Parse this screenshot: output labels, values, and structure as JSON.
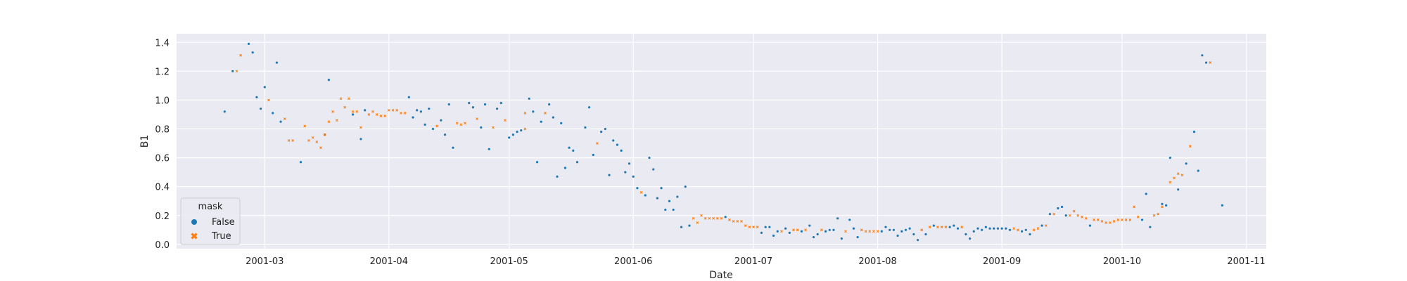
{
  "chart_data": {
    "type": "scatter",
    "xlabel": "Date",
    "ylabel": "B1",
    "xlim": [
      "2001-02-07",
      "2001-11-06"
    ],
    "ylim": [
      -0.03,
      1.46
    ],
    "x_ticks": [
      "2001-03",
      "2001-04",
      "2001-05",
      "2001-06",
      "2001-07",
      "2001-08",
      "2001-09",
      "2001-10",
      "2001-11"
    ],
    "y_ticks": [
      "0.0",
      "0.2",
      "0.4",
      "0.6",
      "0.8",
      "1.0",
      "1.2",
      "1.4"
    ],
    "grid": true,
    "legend": {
      "title": "mask",
      "position": "lower-left",
      "entries": [
        {
          "label": "False",
          "color": "#1f77b4",
          "marker": "circle"
        },
        {
          "label": "True",
          "color": "#ff7f0e",
          "marker": "x"
        }
      ]
    },
    "series": [
      {
        "name": "False",
        "color": "#1f77b4",
        "points": [
          [
            "2001-02-19",
            0.92
          ],
          [
            "2001-02-21",
            1.2
          ],
          [
            "2001-02-25",
            1.39
          ],
          [
            "2001-02-26",
            1.33
          ],
          [
            "2001-02-27",
            1.02
          ],
          [
            "2001-02-28",
            0.94
          ],
          [
            "2001-03-01",
            1.09
          ],
          [
            "2001-03-03",
            0.91
          ],
          [
            "2001-03-04",
            1.26
          ],
          [
            "2001-03-05",
            0.85
          ],
          [
            "2001-03-10",
            0.57
          ],
          [
            "2001-03-16",
            0.76
          ],
          [
            "2001-03-17",
            1.14
          ],
          [
            "2001-03-23",
            0.9
          ],
          [
            "2001-03-25",
            0.73
          ],
          [
            "2001-03-26",
            0.93
          ],
          [
            "2001-04-06",
            1.02
          ],
          [
            "2001-04-07",
            0.88
          ],
          [
            "2001-04-08",
            0.93
          ],
          [
            "2001-04-09",
            0.92
          ],
          [
            "2001-04-10",
            0.83
          ],
          [
            "2001-04-11",
            0.94
          ],
          [
            "2001-04-12",
            0.8
          ],
          [
            "2001-04-14",
            0.86
          ],
          [
            "2001-04-15",
            0.76
          ],
          [
            "2001-04-16",
            0.97
          ],
          [
            "2001-04-17",
            0.67
          ],
          [
            "2001-04-21",
            0.98
          ],
          [
            "2001-04-22",
            0.95
          ],
          [
            "2001-04-24",
            0.81
          ],
          [
            "2001-04-25",
            0.97
          ],
          [
            "2001-04-26",
            0.66
          ],
          [
            "2001-04-28",
            0.94
          ],
          [
            "2001-04-29",
            0.98
          ],
          [
            "2001-05-01",
            0.74
          ],
          [
            "2001-05-02",
            0.76
          ],
          [
            "2001-05-03",
            0.78
          ],
          [
            "2001-05-04",
            0.79
          ],
          [
            "2001-05-06",
            1.01
          ],
          [
            "2001-05-07",
            0.92
          ],
          [
            "2001-05-08",
            0.57
          ],
          [
            "2001-05-09",
            0.85
          ],
          [
            "2001-05-11",
            0.97
          ],
          [
            "2001-05-12",
            0.88
          ],
          [
            "2001-05-13",
            0.47
          ],
          [
            "2001-05-14",
            0.84
          ],
          [
            "2001-05-15",
            0.53
          ],
          [
            "2001-05-16",
            0.67
          ],
          [
            "2001-05-17",
            0.65
          ],
          [
            "2001-05-18",
            0.57
          ],
          [
            "2001-05-20",
            0.81
          ],
          [
            "2001-05-21",
            0.95
          ],
          [
            "2001-05-22",
            0.62
          ],
          [
            "2001-05-24",
            0.78
          ],
          [
            "2001-05-25",
            0.8
          ],
          [
            "2001-05-26",
            0.48
          ],
          [
            "2001-05-27",
            0.72
          ],
          [
            "2001-05-28",
            0.69
          ],
          [
            "2001-05-29",
            0.65
          ],
          [
            "2001-05-30",
            0.5
          ],
          [
            "2001-05-31",
            0.56
          ],
          [
            "2001-06-01",
            0.47
          ],
          [
            "2001-06-02",
            0.39
          ],
          [
            "2001-06-04",
            0.34
          ],
          [
            "2001-06-05",
            0.6
          ],
          [
            "2001-06-06",
            0.52
          ],
          [
            "2001-06-07",
            0.32
          ],
          [
            "2001-06-08",
            0.39
          ],
          [
            "2001-06-09",
            0.24
          ],
          [
            "2001-06-10",
            0.3
          ],
          [
            "2001-06-11",
            0.24
          ],
          [
            "2001-06-12",
            0.33
          ],
          [
            "2001-06-13",
            0.12
          ],
          [
            "2001-06-14",
            0.4
          ],
          [
            "2001-06-15",
            0.13
          ],
          [
            "2001-06-24",
            0.19
          ],
          [
            "2001-07-03",
            0.08
          ],
          [
            "2001-07-04",
            0.12
          ],
          [
            "2001-07-05",
            0.12
          ],
          [
            "2001-07-06",
            0.06
          ],
          [
            "2001-07-07",
            0.09
          ],
          [
            "2001-07-09",
            0.11
          ],
          [
            "2001-07-10",
            0.08
          ],
          [
            "2001-07-13",
            0.09
          ],
          [
            "2001-07-15",
            0.13
          ],
          [
            "2001-07-16",
            0.05
          ],
          [
            "2001-07-17",
            0.07
          ],
          [
            "2001-07-19",
            0.09
          ],
          [
            "2001-07-20",
            0.1
          ],
          [
            "2001-07-21",
            0.1
          ],
          [
            "2001-07-22",
            0.18
          ],
          [
            "2001-07-23",
            0.04
          ],
          [
            "2001-07-25",
            0.17
          ],
          [
            "2001-07-26",
            0.11
          ],
          [
            "2001-07-27",
            0.05
          ],
          [
            "2001-08-02",
            0.09
          ],
          [
            "2001-08-03",
            0.12
          ],
          [
            "2001-08-04",
            0.1
          ],
          [
            "2001-08-05",
            0.1
          ],
          [
            "2001-08-06",
            0.06
          ],
          [
            "2001-08-07",
            0.09
          ],
          [
            "2001-08-08",
            0.1
          ],
          [
            "2001-08-09",
            0.11
          ],
          [
            "2001-08-10",
            0.07
          ],
          [
            "2001-08-11",
            0.03
          ],
          [
            "2001-08-13",
            0.07
          ],
          [
            "2001-08-15",
            0.13
          ],
          [
            "2001-08-19",
            0.12
          ],
          [
            "2001-08-20",
            0.13
          ],
          [
            "2001-08-21",
            0.11
          ],
          [
            "2001-08-23",
            0.07
          ],
          [
            "2001-08-24",
            0.04
          ],
          [
            "2001-08-25",
            0.09
          ],
          [
            "2001-08-26",
            0.11
          ],
          [
            "2001-08-27",
            0.1
          ],
          [
            "2001-08-28",
            0.12
          ],
          [
            "2001-08-29",
            0.11
          ],
          [
            "2001-08-30",
            0.11
          ],
          [
            "2001-08-31",
            0.11
          ],
          [
            "2001-09-01",
            0.11
          ],
          [
            "2001-09-02",
            0.11
          ],
          [
            "2001-09-03",
            0.1
          ],
          [
            "2001-09-06",
            0.09
          ],
          [
            "2001-09-07",
            0.1
          ],
          [
            "2001-09-08",
            0.07
          ],
          [
            "2001-09-11",
            0.13
          ],
          [
            "2001-09-13",
            0.21
          ],
          [
            "2001-09-15",
            0.25
          ],
          [
            "2001-09-16",
            0.26
          ],
          [
            "2001-09-17",
            0.2
          ],
          [
            "2001-09-23",
            0.13
          ],
          [
            "2001-10-06",
            0.17
          ],
          [
            "2001-10-07",
            0.35
          ],
          [
            "2001-10-08",
            0.12
          ],
          [
            "2001-10-11",
            0.28
          ],
          [
            "2001-10-12",
            0.27
          ],
          [
            "2001-10-13",
            0.6
          ],
          [
            "2001-10-15",
            0.38
          ],
          [
            "2001-10-17",
            0.56
          ],
          [
            "2001-10-19",
            0.78
          ],
          [
            "2001-10-20",
            0.51
          ],
          [
            "2001-10-21",
            1.31
          ],
          [
            "2001-10-22",
            1.26
          ],
          [
            "2001-10-26",
            0.27
          ]
        ]
      },
      {
        "name": "True",
        "color": "#ff7f0e",
        "points": [
          [
            "2001-02-22",
            1.2
          ],
          [
            "2001-02-23",
            1.31
          ],
          [
            "2001-03-02",
            1.0
          ],
          [
            "2001-03-06",
            0.87
          ],
          [
            "2001-03-07",
            0.72
          ],
          [
            "2001-03-08",
            0.72
          ],
          [
            "2001-03-11",
            0.82
          ],
          [
            "2001-03-12",
            0.72
          ],
          [
            "2001-03-13",
            0.74
          ],
          [
            "2001-03-14",
            0.71
          ],
          [
            "2001-03-15",
            0.67
          ],
          [
            "2001-03-16",
            0.76
          ],
          [
            "2001-03-17",
            0.85
          ],
          [
            "2001-03-18",
            0.92
          ],
          [
            "2001-03-19",
            0.86
          ],
          [
            "2001-03-20",
            1.01
          ],
          [
            "2001-03-21",
            0.95
          ],
          [
            "2001-03-22",
            1.01
          ],
          [
            "2001-03-23",
            0.92
          ],
          [
            "2001-03-24",
            0.92
          ],
          [
            "2001-03-25",
            0.81
          ],
          [
            "2001-03-27",
            0.9
          ],
          [
            "2001-03-28",
            0.92
          ],
          [
            "2001-03-29",
            0.9
          ],
          [
            "2001-03-30",
            0.89
          ],
          [
            "2001-03-31",
            0.89
          ],
          [
            "2001-04-01",
            0.93
          ],
          [
            "2001-04-02",
            0.93
          ],
          [
            "2001-04-03",
            0.93
          ],
          [
            "2001-04-04",
            0.91
          ],
          [
            "2001-04-05",
            0.91
          ],
          [
            "2001-04-13",
            0.82
          ],
          [
            "2001-04-18",
            0.84
          ],
          [
            "2001-04-19",
            0.83
          ],
          [
            "2001-04-20",
            0.84
          ],
          [
            "2001-04-23",
            0.87
          ],
          [
            "2001-04-27",
            0.81
          ],
          [
            "2001-04-30",
            0.86
          ],
          [
            "2001-05-05",
            0.8
          ],
          [
            "2001-05-05",
            0.91
          ],
          [
            "2001-05-10",
            0.91
          ],
          [
            "2001-05-23",
            0.7
          ],
          [
            "2001-06-03",
            0.36
          ],
          [
            "2001-06-16",
            0.18
          ],
          [
            "2001-06-17",
            0.15
          ],
          [
            "2001-06-18",
            0.2
          ],
          [
            "2001-06-19",
            0.18
          ],
          [
            "2001-06-20",
            0.18
          ],
          [
            "2001-06-21",
            0.18
          ],
          [
            "2001-06-22",
            0.18
          ],
          [
            "2001-06-23",
            0.18
          ],
          [
            "2001-06-25",
            0.17
          ],
          [
            "2001-06-26",
            0.16
          ],
          [
            "2001-06-27",
            0.16
          ],
          [
            "2001-06-28",
            0.16
          ],
          [
            "2001-06-29",
            0.13
          ],
          [
            "2001-06-30",
            0.12
          ],
          [
            "2001-07-01",
            0.12
          ],
          [
            "2001-07-02",
            0.12
          ],
          [
            "2001-07-08",
            0.09
          ],
          [
            "2001-07-11",
            0.1
          ],
          [
            "2001-07-12",
            0.1
          ],
          [
            "2001-07-14",
            0.1
          ],
          [
            "2001-07-18",
            0.1
          ],
          [
            "2001-07-24",
            0.09
          ],
          [
            "2001-07-28",
            0.1
          ],
          [
            "2001-07-29",
            0.09
          ],
          [
            "2001-07-30",
            0.09
          ],
          [
            "2001-07-31",
            0.09
          ],
          [
            "2001-08-01",
            0.09
          ],
          [
            "2001-08-12",
            0.1
          ],
          [
            "2001-08-14",
            0.12
          ],
          [
            "2001-08-16",
            0.12
          ],
          [
            "2001-08-17",
            0.12
          ],
          [
            "2001-08-18",
            0.12
          ],
          [
            "2001-08-22",
            0.12
          ],
          [
            "2001-09-04",
            0.11
          ],
          [
            "2001-09-05",
            0.1
          ],
          [
            "2001-09-09",
            0.1
          ],
          [
            "2001-09-10",
            0.11
          ],
          [
            "2001-09-12",
            0.13
          ],
          [
            "2001-09-14",
            0.21
          ],
          [
            "2001-09-18",
            0.2
          ],
          [
            "2001-09-19",
            0.23
          ],
          [
            "2001-09-20",
            0.2
          ],
          [
            "2001-09-21",
            0.19
          ],
          [
            "2001-09-22",
            0.18
          ],
          [
            "2001-09-24",
            0.17
          ],
          [
            "2001-09-25",
            0.17
          ],
          [
            "2001-09-26",
            0.16
          ],
          [
            "2001-09-27",
            0.15
          ],
          [
            "2001-09-28",
            0.15
          ],
          [
            "2001-09-29",
            0.16
          ],
          [
            "2001-09-30",
            0.17
          ],
          [
            "2001-10-01",
            0.17
          ],
          [
            "2001-10-02",
            0.17
          ],
          [
            "2001-10-03",
            0.17
          ],
          [
            "2001-10-04",
            0.26
          ],
          [
            "2001-10-05",
            0.19
          ],
          [
            "2001-10-09",
            0.2
          ],
          [
            "2001-10-10",
            0.21
          ],
          [
            "2001-10-11",
            0.26
          ],
          [
            "2001-10-13",
            0.43
          ],
          [
            "2001-10-14",
            0.46
          ],
          [
            "2001-10-15",
            0.49
          ],
          [
            "2001-10-16",
            0.48
          ],
          [
            "2001-10-18",
            0.68
          ],
          [
            "2001-10-23",
            1.26
          ]
        ]
      }
    ]
  }
}
